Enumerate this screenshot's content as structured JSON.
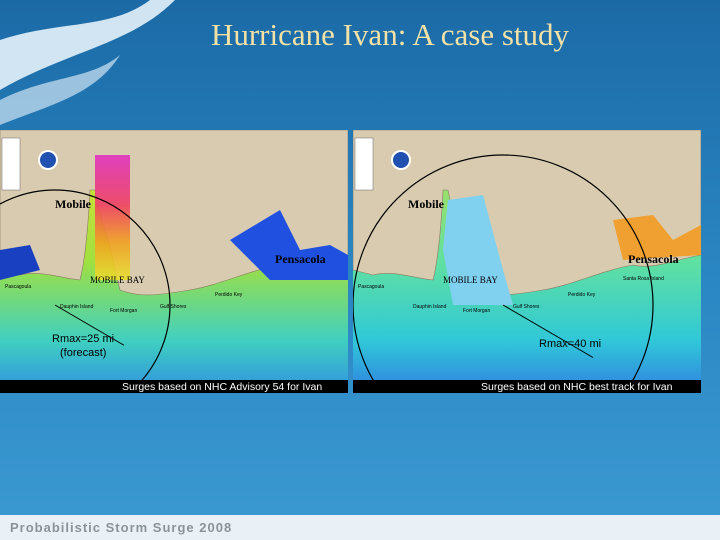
{
  "title": "Hurricane Ivan: A case study",
  "panels": [
    {
      "cities": [
        "Mobile",
        "Pensacola"
      ],
      "bay_label": "MOBILE BAY",
      "places": [
        "Pascagoula",
        "Dauphin Island",
        "Fort Morgan",
        "Gulf Shores",
        "Perdido Key"
      ],
      "rmax_label": "Rmax=25 mi",
      "rmax_note": "(forecast)",
      "caption": "Surges based on NHC Advisory 54 for Ivan"
    },
    {
      "cities": [
        "Mobile",
        "Pensacola"
      ],
      "bay_label": "MOBILE BAY",
      "places": [
        "Pascagoula",
        "Dauphin Island",
        "Fort Morgan",
        "Gulf Shores",
        "Perdido Key",
        "Santa Rosa Island"
      ],
      "rmax_label": "Rmax=40 mi",
      "caption": "Surges based on NHC best track for Ivan"
    }
  ],
  "footer": "Probabilistic Storm Surge 2008"
}
